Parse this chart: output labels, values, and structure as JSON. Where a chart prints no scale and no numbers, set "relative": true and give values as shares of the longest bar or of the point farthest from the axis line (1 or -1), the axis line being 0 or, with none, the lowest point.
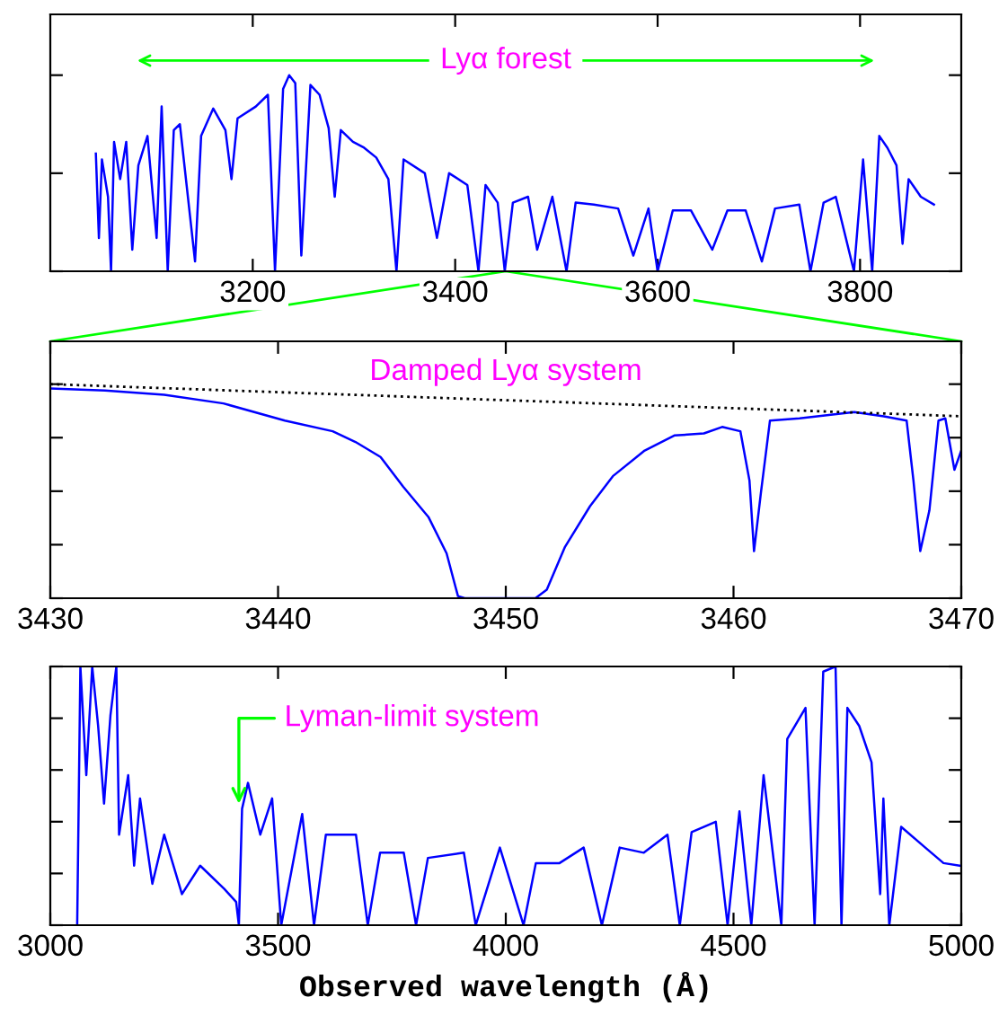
{
  "chart_data": [
    {
      "type": "line",
      "relative": true,
      "xlim": [
        3000,
        3900
      ],
      "xticks": [
        3200,
        3400,
        3600,
        3800
      ],
      "tick_labels": "x",
      "grid": false,
      "legend": false,
      "marker": "none",
      "annotations": [
        "Lyα forest"
      ],
      "series": [
        {
          "color": "#0000ff",
          "line_style": "solid",
          "x": [
            3045,
            3048,
            3051,
            3057,
            3060,
            3063,
            3069,
            3075,
            3081,
            3087,
            3096,
            3105,
            3110,
            3116,
            3122,
            3128,
            3143,
            3149,
            3161,
            3173,
            3179,
            3185,
            3203,
            3215,
            3222,
            3230,
            3236,
            3242,
            3248,
            3257,
            3266,
            3275,
            3281,
            3287,
            3299,
            3310,
            3322,
            3334,
            3342,
            3349,
            3370,
            3382,
            3394,
            3412,
            3423,
            3430,
            3442,
            3449,
            3457,
            3472,
            3481,
            3496,
            3510,
            3519,
            3537,
            3561,
            3576,
            3591,
            3600,
            3615,
            3633,
            3654,
            3669,
            3687,
            3703,
            3716,
            3740,
            3751,
            3764,
            3776,
            3794,
            3803,
            3812,
            3819,
            3827,
            3836,
            3842,
            3848,
            3860,
            3873
          ],
          "values": [
            0.6,
            0.17,
            0.57,
            0.38,
            0,
            0.66,
            0.47,
            0.66,
            0.11,
            0.54,
            0.69,
            0.17,
            0.84,
            0,
            0.72,
            0.75,
            0.05,
            0.69,
            0.83,
            0.72,
            0.47,
            0.78,
            0.84,
            0.9,
            0,
            0.93,
            1.0,
            0.96,
            0.08,
            0.95,
            0.9,
            0.73,
            0.38,
            0.72,
            0.66,
            0.63,
            0.58,
            0.47,
            0,
            0.57,
            0.5,
            0.17,
            0.5,
            0.44,
            0,
            0.44,
            0.35,
            0,
            0.35,
            0.38,
            0.11,
            0.38,
            0,
            0.35,
            0.34,
            0.32,
            0.08,
            0.32,
            0,
            0.31,
            0.31,
            0.11,
            0.31,
            0.31,
            0.05,
            0.32,
            0.34,
            0,
            0.35,
            0.38,
            0,
            0.57,
            0,
            0.69,
            0.63,
            0.54,
            0.14,
            0.47,
            0.38,
            0.34
          ]
        }
      ]
    },
    {
      "type": "line",
      "relative": true,
      "xlim": [
        3430,
        3470
      ],
      "xticks": [
        3430,
        3440,
        3450,
        3460,
        3470
      ],
      "tick_labels": "x",
      "grid": false,
      "legend": false,
      "marker": "none",
      "annotations": [
        "Damped Lyα system"
      ],
      "series": [
        {
          "color": "#0000ff",
          "line_style": "solid",
          "x": [
            3430,
            3432.4,
            3435,
            3437.6,
            3440.3,
            3442.4,
            3443.4,
            3444.5,
            3445.5,
            3446.6,
            3447.4,
            3447.9,
            3448.2,
            3451.3,
            3451.8,
            3452.6,
            3453.7,
            3454.7,
            3456.1,
            3457.4,
            3458.7,
            3459.5,
            3460.3,
            3460.7,
            3460.9,
            3461.2,
            3461.6,
            3462.9,
            3465.3,
            3466.6,
            3467.6,
            3467.9,
            3468.2,
            3468.6,
            3469,
            3469.3,
            3469.7,
            3470
          ],
          "values": [
            0.98,
            0.97,
            0.95,
            0.91,
            0.83,
            0.78,
            0.73,
            0.66,
            0.52,
            0.38,
            0.21,
            0.01,
            0,
            0,
            0.04,
            0.24,
            0.43,
            0.57,
            0.69,
            0.76,
            0.77,
            0.8,
            0.78,
            0.55,
            0.22,
            0.49,
            0.83,
            0.84,
            0.87,
            0.85,
            0.83,
            0.55,
            0.22,
            0.41,
            0.83,
            0.84,
            0.6,
            0.69
          ]
        },
        {
          "color": "#000000",
          "line_style": "dotted",
          "x": [
            3430,
            3470
          ],
          "values": [
            1.0,
            0.85
          ]
        }
      ]
    },
    {
      "type": "line",
      "relative": true,
      "xlim": [
        3000,
        5000
      ],
      "xticks": [
        3000,
        3500,
        4000,
        4500,
        5000
      ],
      "xlabel": "Observed wavelength (Å)",
      "tick_labels": "x",
      "grid": false,
      "legend": false,
      "marker": "none",
      "annotations": [
        {
          "text": "Lyman-limit system",
          "x": 3414,
          "y": 0.45
        }
      ],
      "series": [
        {
          "color": "#0000ff",
          "line_style": "solid",
          "x": [
            3059,
            3066,
            3079,
            3092,
            3105,
            3118,
            3132,
            3145,
            3151,
            3171,
            3184,
            3197,
            3224,
            3250,
            3289,
            3329,
            3382,
            3408,
            3414,
            3421,
            3434,
            3461,
            3487,
            3507,
            3553,
            3579,
            3605,
            3671,
            3697,
            3724,
            3776,
            3803,
            3829,
            3908,
            3934,
            3987,
            4039,
            4066,
            4118,
            4171,
            4211,
            4250,
            4303,
            4355,
            4382,
            4408,
            4461,
            4487,
            4513,
            4539,
            4566,
            4605,
            4618,
            4658,
            4678,
            4697,
            4724,
            4737,
            4750,
            4776,
            4803,
            4822,
            4829,
            4842,
            4868,
            4921,
            4961,
            4997
          ],
          "values": [
            0,
            1.0,
            0.58,
            1.0,
            0.77,
            0.47,
            0.81,
            1.0,
            0.35,
            0.58,
            0.23,
            0.49,
            0.16,
            0.35,
            0.12,
            0.23,
            0.14,
            0.09,
            0,
            0.45,
            0.55,
            0.35,
            0.49,
            0,
            0.43,
            0,
            0.35,
            0.35,
            0,
            0.28,
            0.28,
            0,
            0.26,
            0.28,
            0,
            0.3,
            0,
            0.24,
            0.24,
            0.3,
            0,
            0.3,
            0.28,
            0.35,
            0,
            0.36,
            0.4,
            0,
            0.44,
            0,
            0.58,
            0,
            0.72,
            0.84,
            0,
            0.98,
            1.0,
            0,
            0.84,
            0.77,
            0.63,
            0.12,
            0.49,
            0,
            0.38,
            0.3,
            0.24,
            0.23
          ]
        }
      ]
    }
  ]
}
